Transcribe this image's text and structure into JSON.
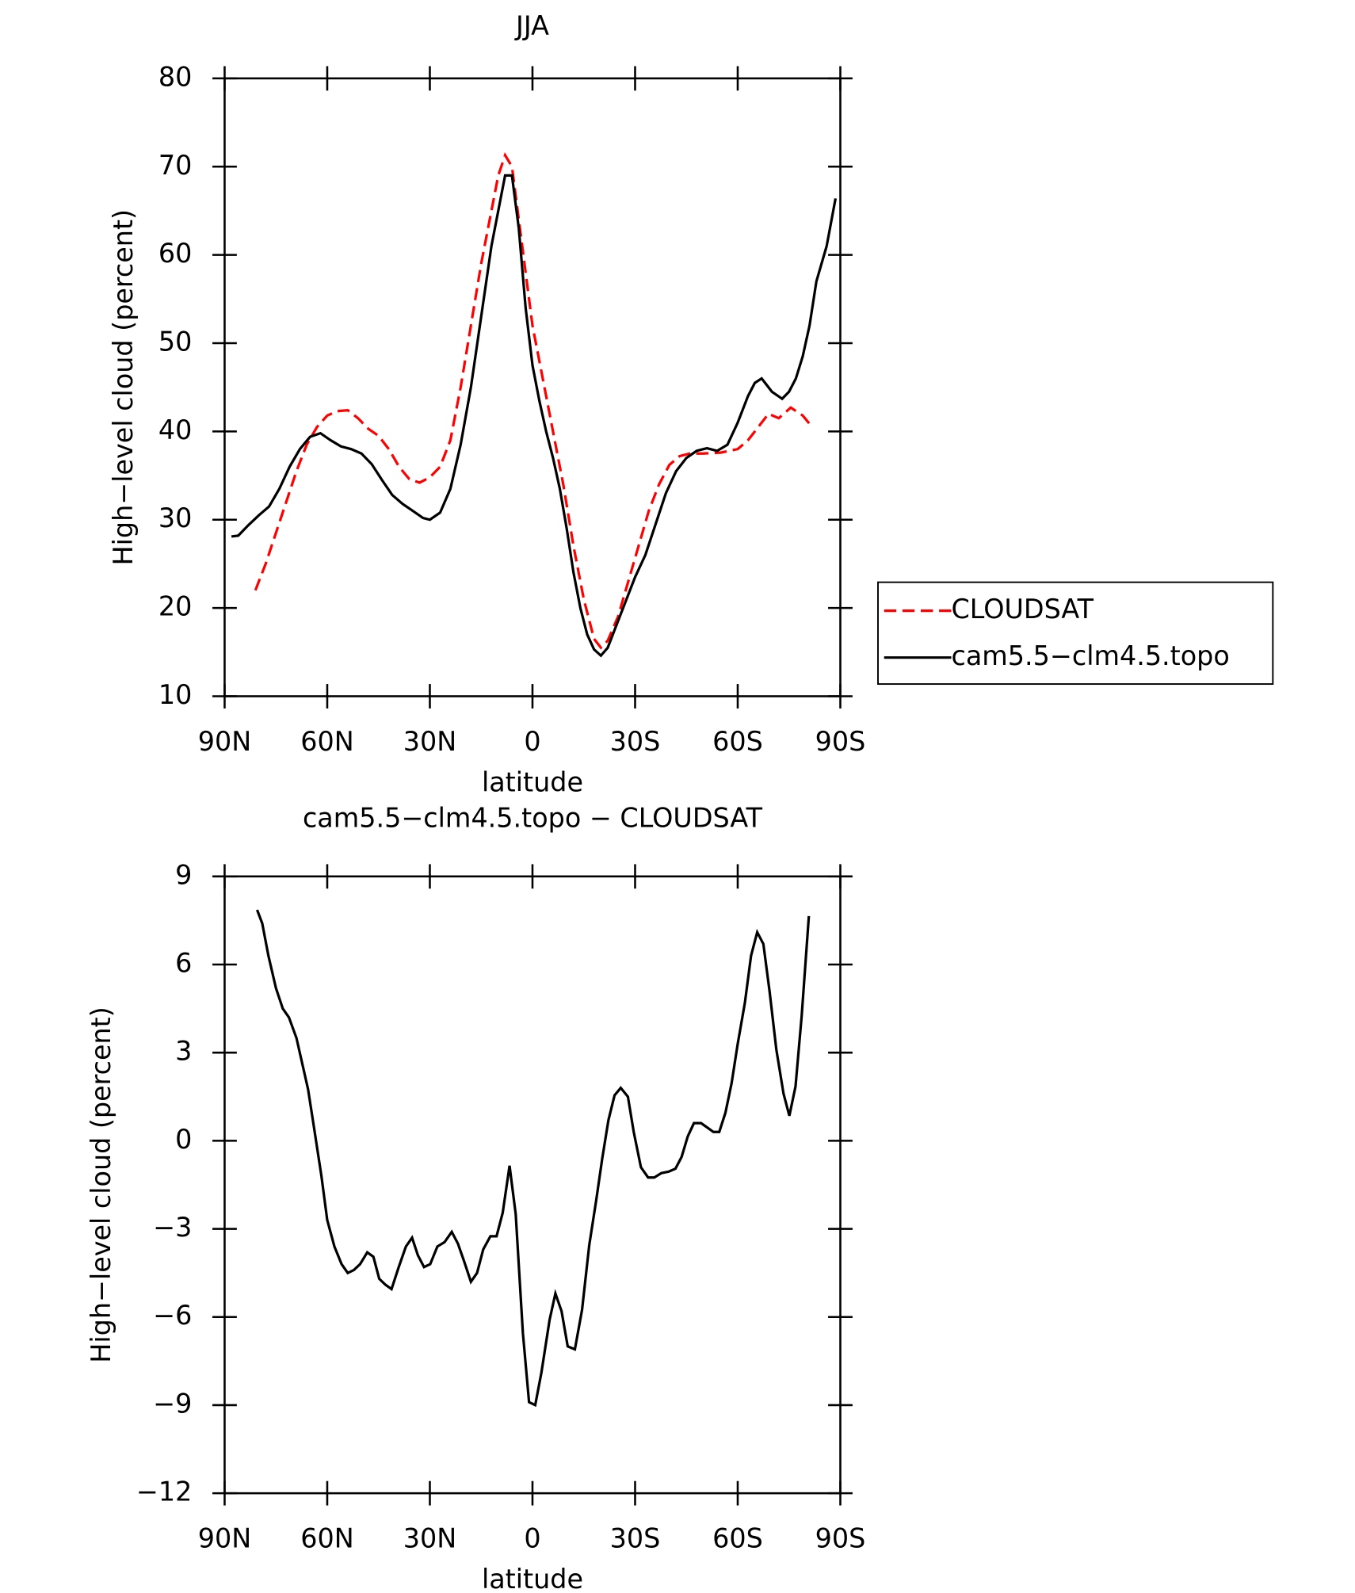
{
  "chart_data": [
    {
      "type": "line",
      "title": "JJA",
      "x_label": "latitude",
      "y_label": "High−level cloud (percent)",
      "xlim": [
        90,
        -90
      ],
      "xticks": [
        {
          "value": 90,
          "label": "90N"
        },
        {
          "value": 60,
          "label": "60N"
        },
        {
          "value": 30,
          "label": "30N"
        },
        0,
        {
          "value": -30,
          "label": "30S"
        },
        {
          "value": -60,
          "label": "60S"
        },
        {
          "value": -90,
          "label": "90S"
        }
      ],
      "ylim": [
        10,
        80
      ],
      "yticks": [
        10,
        20,
        30,
        40,
        50,
        60,
        70,
        80
      ],
      "legend": "right",
      "series": [
        {
          "name": "CLOUDSAT",
          "color": "#ff0000",
          "line_style": "dashed",
          "x": [
            81,
            78,
            75,
            72,
            69,
            66,
            63,
            60,
            57,
            54,
            51,
            48,
            45,
            42,
            39,
            36,
            33,
            30,
            27,
            24,
            21,
            18,
            15,
            12,
            10,
            8,
            6,
            4,
            2,
            0,
            -3,
            -6,
            -9,
            -12,
            -15,
            -18,
            -20,
            -22,
            -25,
            -28,
            -31,
            -34,
            -37,
            -40,
            -43,
            -46,
            -50,
            -55,
            -60,
            -63,
            -66,
            -69,
            -72,
            -75.5,
            -79,
            -82
          ],
          "values": [
            22,
            25,
            28.5,
            32,
            35.5,
            38.5,
            40.5,
            41.8,
            42.3,
            42.4,
            41.5,
            40.3,
            39.5,
            38,
            36,
            34.6,
            34.2,
            34.8,
            36,
            39,
            45,
            52,
            59,
            65,
            69,
            71.3,
            70,
            64,
            58,
            52,
            46,
            40,
            34,
            27,
            21,
            16.5,
            15.5,
            16.3,
            19,
            23,
            27,
            31,
            34,
            36.2,
            37.2,
            37.5,
            37.5,
            37.6,
            38,
            39,
            40.5,
            42,
            41.5,
            42.7,
            41.8,
            40.4
          ]
        },
        {
          "name": "cam5.5−clm4.5.topo",
          "color": "#000000",
          "line_style": "solid",
          "x": [
            88,
            86,
            83,
            80,
            77,
            74,
            71,
            68,
            65,
            62,
            59,
            56,
            53,
            50,
            47,
            44,
            41,
            38,
            35,
            32,
            30,
            27,
            24,
            21,
            18,
            15,
            12,
            10,
            8,
            6,
            4,
            2,
            0,
            -2,
            -4,
            -6,
            -8,
            -10,
            -12,
            -14,
            -16,
            -18,
            -20,
            -22,
            -24,
            -27,
            -30,
            -33,
            -36,
            -39,
            -42,
            -45,
            -48,
            -51,
            -54,
            -57,
            -60,
            -63,
            -65,
            -67,
            -70,
            -73,
            -75,
            -77,
            -79,
            -81,
            -83,
            -86,
            -88.6
          ],
          "values": [
            28.1,
            28.2,
            29.4,
            30.5,
            31.5,
            33.5,
            36,
            38,
            39.4,
            39.8,
            39,
            38.3,
            38,
            37.5,
            36.3,
            34.5,
            32.8,
            31.8,
            31,
            30.2,
            30,
            30.8,
            33.5,
            38.5,
            45,
            53,
            61,
            65,
            69,
            69,
            63,
            54,
            47.5,
            43.5,
            40,
            37,
            33.5,
            29,
            24,
            20,
            17,
            15.3,
            14.6,
            15.5,
            17.5,
            20.5,
            23.5,
            26,
            29.5,
            33,
            35.5,
            37,
            37.8,
            38.1,
            37.8,
            38.5,
            41,
            44,
            45.5,
            46,
            44.5,
            43.7,
            44.5,
            46,
            48.5,
            52,
            57,
            61,
            66.4
          ]
        }
      ]
    },
    {
      "type": "line",
      "title": "cam5.5−clm4.5.topo − CLOUDSAT",
      "x_label": "latitude",
      "y_label": "High−level cloud (percent)",
      "xlim": [
        90,
        -90
      ],
      "xticks": [
        {
          "value": 90,
          "label": "90N"
        },
        {
          "value": 60,
          "label": "60N"
        },
        {
          "value": 30,
          "label": "30N"
        },
        0,
        {
          "value": -30,
          "label": "30S"
        },
        {
          "value": -60,
          "label": "60S"
        },
        {
          "value": -90,
          "label": "90S"
        }
      ],
      "ylim": [
        -12,
        9
      ],
      "yticks": [
        {
          "value": -12,
          "label": "−12"
        },
        {
          "value": -9,
          "label": "−9"
        },
        {
          "value": -6,
          "label": "−6"
        },
        {
          "value": -3,
          "label": "−3"
        },
        0,
        3,
        6,
        9
      ],
      "series": [
        {
          "color": "#000000",
          "line_style": "solid",
          "x": [
            80.5,
            79,
            77.2,
            75,
            73,
            71.2,
            69,
            65.6,
            63.8,
            61.7,
            60,
            57.9,
            55.8,
            54,
            52.2,
            50.4,
            48.3,
            46.5,
            44.8,
            43,
            41.2,
            39.1,
            37,
            35.2,
            33.5,
            31.7,
            29.9,
            27.8,
            25.7,
            23.6,
            21.8,
            20,
            18,
            16.2,
            14.4,
            12.3,
            10.5,
            8.7,
            6.7,
            4.9,
            2.8,
            1,
            -0.8,
            -2.6,
            -5,
            -6.7,
            -8.5,
            -10.3,
            -12.4,
            -14.5,
            -16.6,
            -18.6,
            -20.4,
            -22.2,
            -24,
            -25.8,
            -27.9,
            -29.6,
            -31.7,
            -33.8,
            -35.6,
            -37.7,
            -39.8,
            -41.8,
            -43.6,
            -45.4,
            -47.2,
            -49.3,
            -51.1,
            -52.9,
            -54.6,
            -56.4,
            -58.2,
            -60,
            -62.1,
            -63.9,
            -65.7,
            -67.5,
            -69.3,
            -71.3,
            -73.4,
            -75.1,
            -76.9,
            -78.7,
            -80.8
          ],
          "values": [
            7.86,
            7.4,
            6.3,
            5.2,
            4.5,
            4.2,
            3.5,
            1.75,
            0.4,
            -1.2,
            -2.7,
            -3.6,
            -4.2,
            -4.5,
            -4.4,
            -4.2,
            -3.8,
            -3.95,
            -4.7,
            -4.9,
            -5.05,
            -4.3,
            -3.6,
            -3.3,
            -3.9,
            -4.3,
            -4.2,
            -3.6,
            -3.45,
            -3.1,
            -3.5,
            -4.1,
            -4.8,
            -4.5,
            -3.7,
            -3.25,
            -3.25,
            -2.45,
            -0.85,
            -2.5,
            -6.55,
            -8.9,
            -9.0,
            -7.9,
            -6.1,
            -5.2,
            -5.8,
            -7,
            -7.1,
            -5.75,
            -3.55,
            -2.05,
            -0.6,
            0.7,
            1.55,
            1.8,
            1.5,
            0.3,
            -0.9,
            -1.25,
            -1.25,
            -1.1,
            -1.05,
            -0.95,
            -0.55,
            0.15,
            0.6,
            0.6,
            0.45,
            0.3,
            0.3,
            0.95,
            1.95,
            3.3,
            4.7,
            6.3,
            7.1,
            6.7,
            5.1,
            3.1,
            1.6,
            0.85,
            1.85,
            4.25,
            7.65
          ]
        }
      ]
    }
  ]
}
